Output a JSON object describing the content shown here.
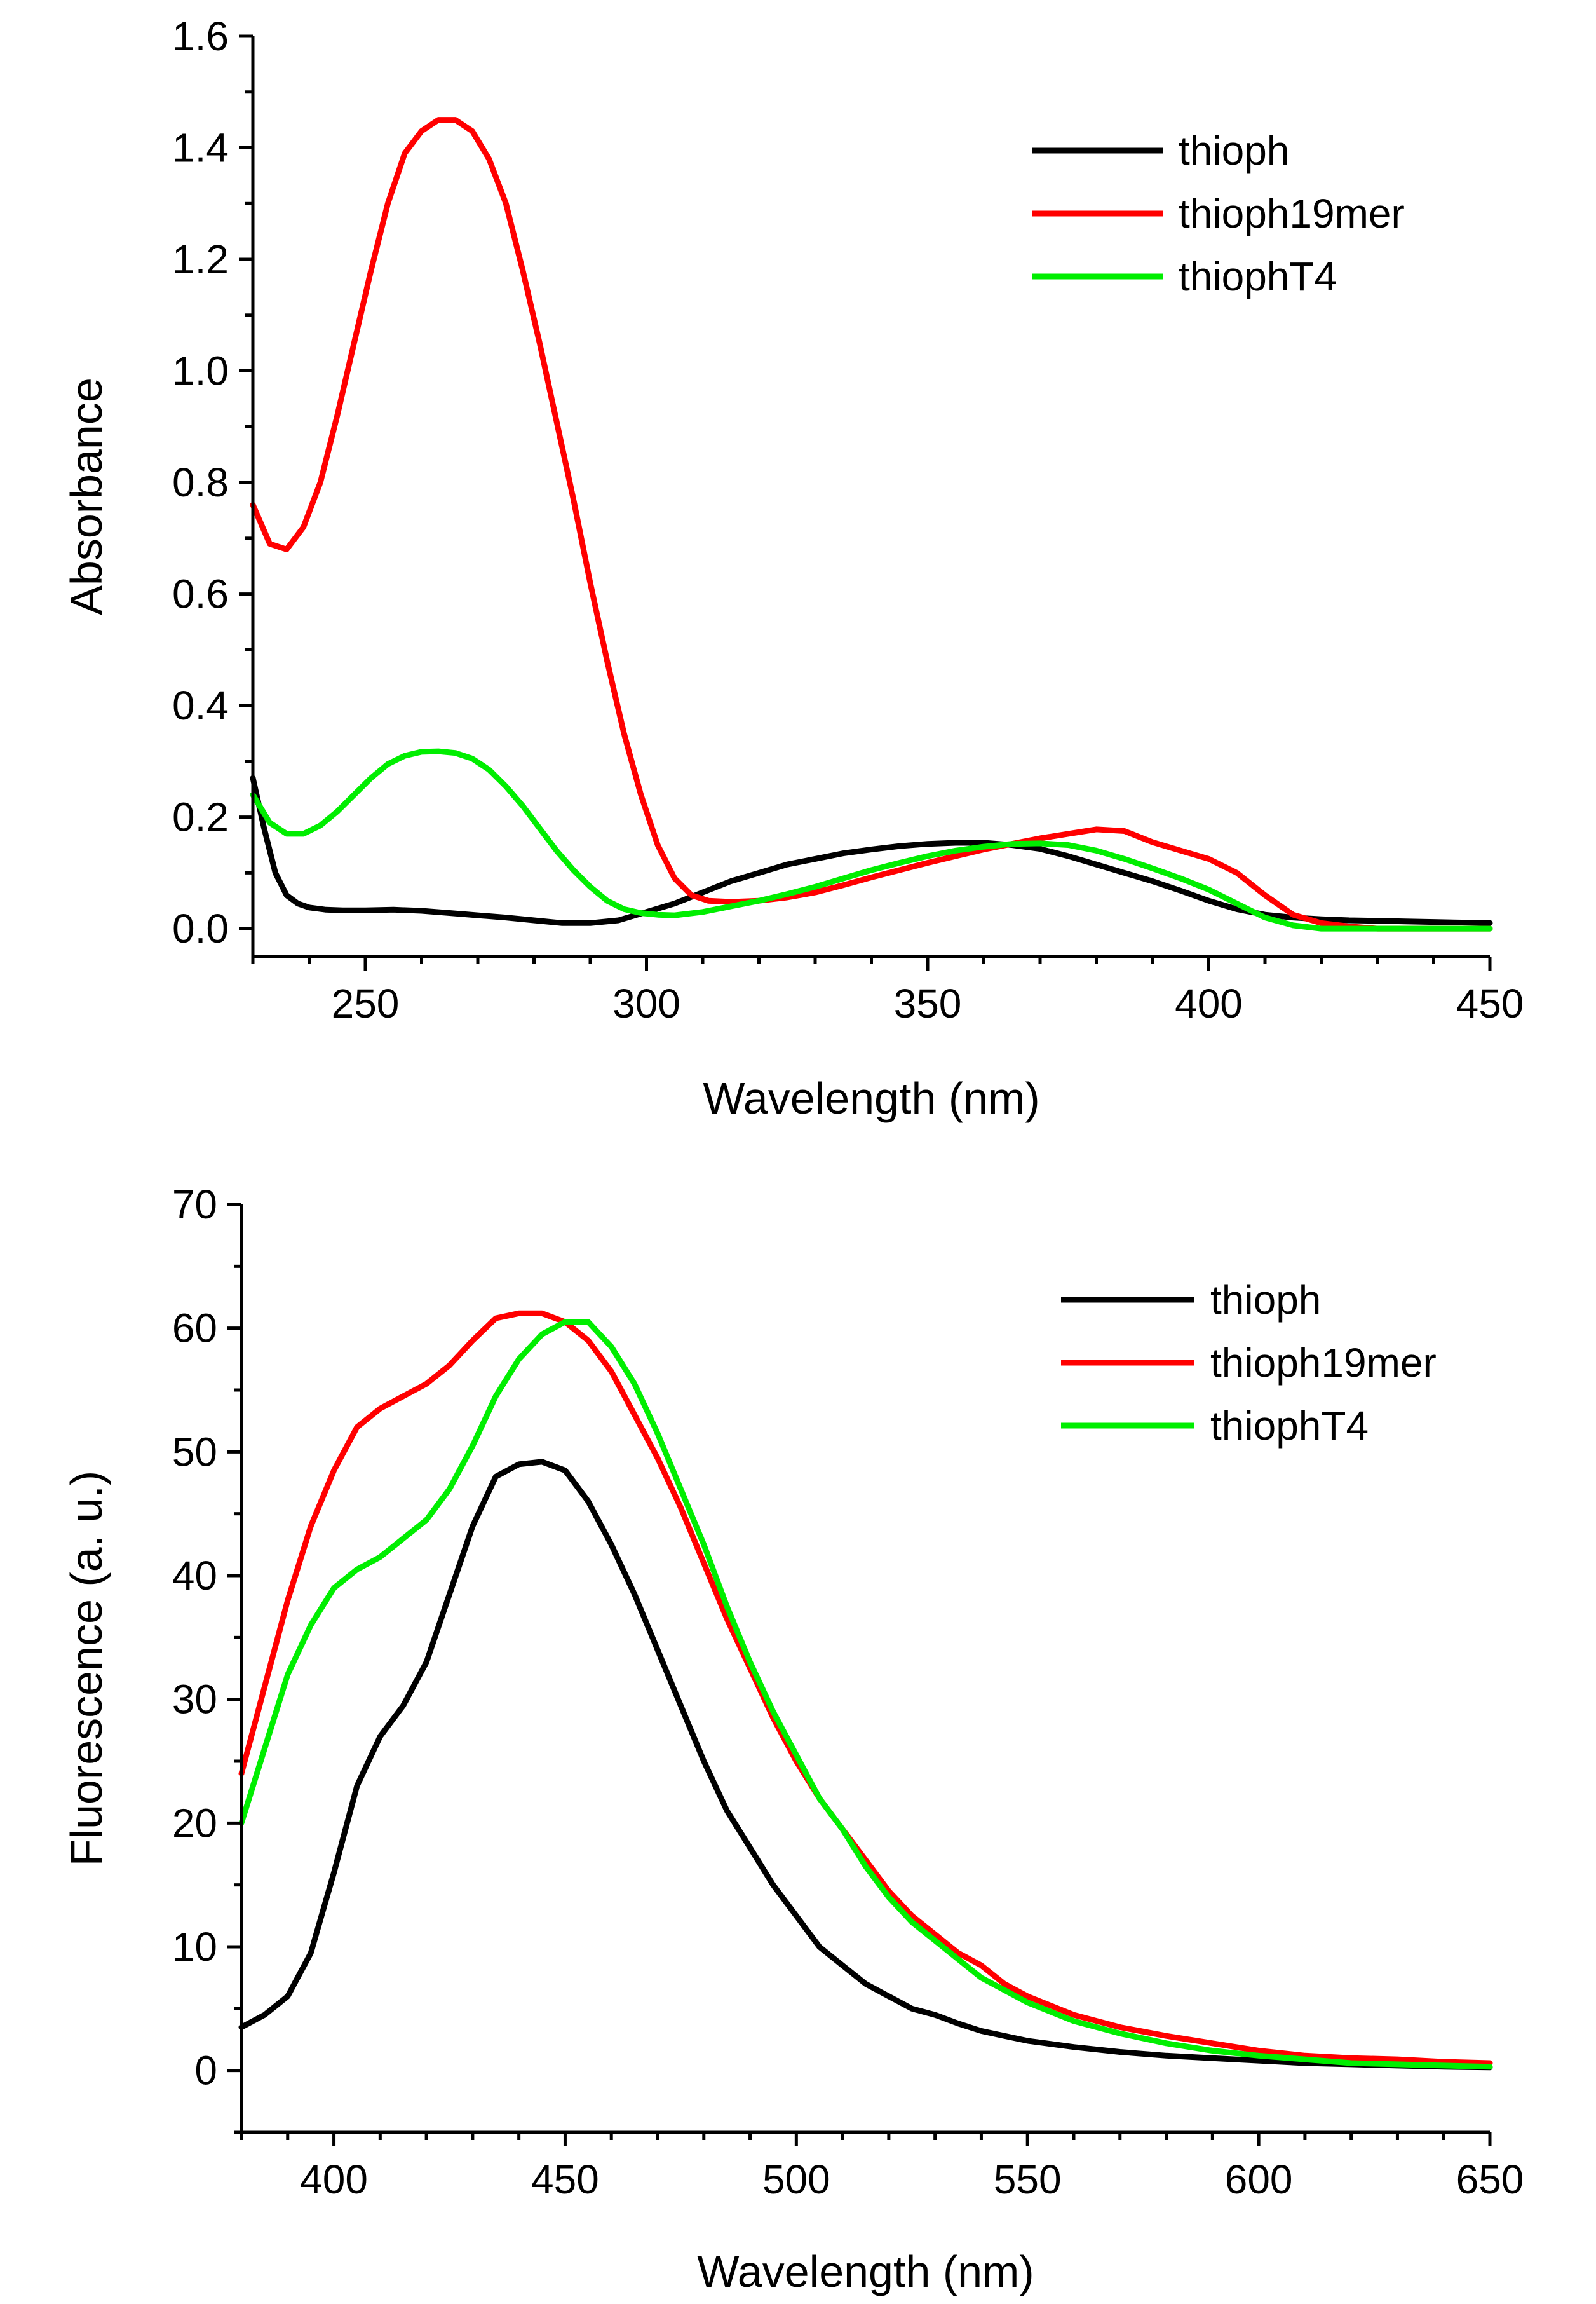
{
  "chart_data": [
    {
      "type": "line",
      "title": "",
      "xlabel": "Wavelength (nm)",
      "ylabel": "Absorbance",
      "xlim": [
        230,
        450
      ],
      "ylim": [
        -0.05,
        1.6
      ],
      "xticks": [
        250,
        300,
        350,
        400,
        450
      ],
      "xtick_labels": [
        "250",
        "300",
        "350",
        "400",
        "450"
      ],
      "xminor_step": 10,
      "yticks": [
        0.0,
        0.2,
        0.4,
        0.6,
        0.8,
        1.0,
        1.2,
        1.4,
        1.6
      ],
      "ytick_labels": [
        "0.0",
        "0.2",
        "0.4",
        "0.6",
        "0.8",
        "1.0",
        "1.2",
        "1.4",
        "1.6"
      ],
      "yminor_step": 0.1,
      "grid": false,
      "legend_position": "top-right",
      "series": [
        {
          "name": "thioph",
          "color": "#000000",
          "x": [
            230,
            232,
            234,
            236,
            238,
            240,
            243,
            246,
            250,
            255,
            260,
            265,
            270,
            275,
            280,
            285,
            290,
            295,
            300,
            305,
            310,
            315,
            320,
            325,
            330,
            335,
            340,
            345,
            350,
            355,
            360,
            365,
            370,
            375,
            380,
            385,
            390,
            395,
            400,
            405,
            410,
            415,
            420,
            425,
            430,
            435,
            440,
            445,
            450
          ],
          "y": [
            0.27,
            0.18,
            0.1,
            0.06,
            0.045,
            0.038,
            0.034,
            0.033,
            0.033,
            0.034,
            0.032,
            0.028,
            0.024,
            0.02,
            0.015,
            0.01,
            0.01,
            0.015,
            0.03,
            0.045,
            0.065,
            0.085,
            0.1,
            0.115,
            0.125,
            0.135,
            0.142,
            0.148,
            0.152,
            0.154,
            0.154,
            0.15,
            0.143,
            0.13,
            0.115,
            0.1,
            0.085,
            0.068,
            0.05,
            0.035,
            0.025,
            0.02,
            0.017,
            0.015,
            0.014,
            0.013,
            0.012,
            0.011,
            0.01
          ]
        },
        {
          "name": "thioph19mer",
          "color": "#ff0000",
          "x": [
            230,
            233,
            236,
            239,
            242,
            245,
            248,
            251,
            254,
            257,
            260,
            263,
            266,
            269,
            272,
            275,
            278,
            281,
            284,
            287,
            290,
            293,
            296,
            299,
            302,
            305,
            308,
            311,
            315,
            320,
            325,
            330,
            335,
            340,
            345,
            350,
            355,
            360,
            365,
            370,
            375,
            380,
            385,
            390,
            395,
            400,
            405,
            410,
            415,
            420,
            425,
            430,
            440,
            450
          ],
          "y": [
            0.76,
            0.69,
            0.68,
            0.72,
            0.8,
            0.92,
            1.05,
            1.18,
            1.3,
            1.39,
            1.43,
            1.45,
            1.45,
            1.43,
            1.38,
            1.3,
            1.18,
            1.05,
            0.91,
            0.77,
            0.62,
            0.48,
            0.35,
            0.24,
            0.15,
            0.09,
            0.06,
            0.05,
            0.048,
            0.05,
            0.056,
            0.065,
            0.078,
            0.092,
            0.105,
            0.118,
            0.13,
            0.142,
            0.152,
            0.162,
            0.17,
            0.178,
            0.175,
            0.155,
            0.14,
            0.125,
            0.1,
            0.06,
            0.025,
            0.01,
            0.004,
            0.0,
            0.0,
            0.0
          ]
        },
        {
          "name": "thiophT4",
          "color": "#00ee00",
          "x": [
            230,
            233,
            236,
            239,
            242,
            245,
            248,
            251,
            254,
            257,
            260,
            263,
            266,
            269,
            272,
            275,
            278,
            281,
            284,
            287,
            290,
            293,
            296,
            299,
            302,
            305,
            310,
            315,
            320,
            325,
            330,
            335,
            340,
            345,
            350,
            355,
            360,
            365,
            370,
            375,
            380,
            385,
            390,
            395,
            400,
            405,
            410,
            415,
            420,
            425,
            430,
            440,
            450
          ],
          "y": [
            0.24,
            0.19,
            0.17,
            0.17,
            0.185,
            0.21,
            0.24,
            0.27,
            0.295,
            0.31,
            0.317,
            0.318,
            0.315,
            0.305,
            0.285,
            0.255,
            0.22,
            0.18,
            0.14,
            0.105,
            0.075,
            0.05,
            0.035,
            0.028,
            0.025,
            0.024,
            0.03,
            0.04,
            0.05,
            0.062,
            0.075,
            0.09,
            0.105,
            0.118,
            0.13,
            0.14,
            0.147,
            0.152,
            0.153,
            0.15,
            0.14,
            0.125,
            0.108,
            0.09,
            0.07,
            0.045,
            0.02,
            0.006,
            0.0,
            0.0,
            0.0,
            0.0,
            0.0
          ]
        }
      ]
    },
    {
      "type": "line",
      "title": "",
      "xlabel": "Wavelength (nm)",
      "ylabel": "Fluorescence (a. u.)",
      "xlim": [
        380,
        650
      ],
      "ylim": [
        -5,
        70
      ],
      "xticks": [
        400,
        450,
        500,
        550,
        600,
        650
      ],
      "xtick_labels": [
        "400",
        "450",
        "500",
        "550",
        "600",
        "650"
      ],
      "xminor_step": 10,
      "yticks": [
        0,
        10,
        20,
        30,
        40,
        50,
        60,
        70
      ],
      "ytick_labels": [
        "0",
        "10",
        "20",
        "30",
        "40",
        "50",
        "60",
        "70"
      ],
      "yminor_step": 5,
      "grid": false,
      "legend_position": "top-right",
      "series": [
        {
          "name": "thioph",
          "color": "#000000",
          "x": [
            380,
            385,
            390,
            395,
            400,
            405,
            410,
            415,
            420,
            425,
            430,
            435,
            440,
            445,
            450,
            455,
            460,
            465,
            470,
            475,
            480,
            485,
            490,
            495,
            500,
            505,
            510,
            515,
            520,
            525,
            530,
            535,
            540,
            545,
            550,
            560,
            570,
            580,
            590,
            600,
            610,
            620,
            630,
            640,
            650
          ],
          "y": [
            3.5,
            4.5,
            6.0,
            9.5,
            16.0,
            23.0,
            27.0,
            29.5,
            33.0,
            38.5,
            44.0,
            48.0,
            49.0,
            49.2,
            48.5,
            46.0,
            42.5,
            38.5,
            34.0,
            29.5,
            25.0,
            21.0,
            18.0,
            15.0,
            12.5,
            10.0,
            8.5,
            7.0,
            6.0,
            5.0,
            4.5,
            3.8,
            3.2,
            2.8,
            2.4,
            1.9,
            1.5,
            1.2,
            1.0,
            0.8,
            0.6,
            0.5,
            0.4,
            0.3,
            0.25
          ]
        },
        {
          "name": "thioph19mer",
          "color": "#ff0000",
          "x": [
            380,
            385,
            390,
            395,
            400,
            405,
            410,
            415,
            420,
            425,
            430,
            435,
            440,
            445,
            450,
            455,
            460,
            465,
            470,
            475,
            480,
            485,
            490,
            495,
            500,
            505,
            510,
            515,
            520,
            525,
            530,
            535,
            540,
            545,
            550,
            560,
            570,
            580,
            590,
            600,
            610,
            620,
            630,
            640,
            650
          ],
          "y": [
            24.0,
            31.0,
            38.0,
            44.0,
            48.5,
            52.0,
            53.5,
            54.5,
            55.5,
            57.0,
            59.0,
            60.8,
            61.2,
            61.2,
            60.5,
            59.0,
            56.5,
            53.0,
            49.5,
            45.5,
            41.0,
            36.5,
            32.5,
            28.5,
            25.0,
            22.0,
            19.5,
            17.0,
            14.5,
            12.5,
            11.0,
            9.5,
            8.5,
            7.0,
            6.0,
            4.5,
            3.5,
            2.8,
            2.2,
            1.6,
            1.2,
            1.0,
            0.9,
            0.7,
            0.6
          ]
        },
        {
          "name": "thiophT4",
          "color": "#00ee00",
          "x": [
            380,
            385,
            390,
            395,
            400,
            405,
            410,
            415,
            420,
            425,
            430,
            435,
            440,
            445,
            450,
            455,
            460,
            465,
            470,
            475,
            480,
            485,
            490,
            495,
            500,
            505,
            510,
            515,
            520,
            525,
            530,
            535,
            540,
            545,
            550,
            560,
            570,
            580,
            590,
            600,
            610,
            620,
            630,
            640,
            650
          ],
          "y": [
            20.0,
            26.0,
            32.0,
            36.0,
            39.0,
            40.5,
            41.5,
            43.0,
            44.5,
            47.0,
            50.5,
            54.5,
            57.5,
            59.5,
            60.5,
            60.5,
            58.5,
            55.5,
            51.5,
            47.0,
            42.5,
            37.5,
            33.0,
            29.0,
            25.5,
            22.0,
            19.5,
            16.5,
            14.0,
            12.0,
            10.5,
            9.0,
            7.5,
            6.5,
            5.5,
            4.0,
            3.0,
            2.2,
            1.6,
            1.2,
            0.9,
            0.6,
            0.5,
            0.4,
            0.3
          ]
        }
      ]
    }
  ]
}
